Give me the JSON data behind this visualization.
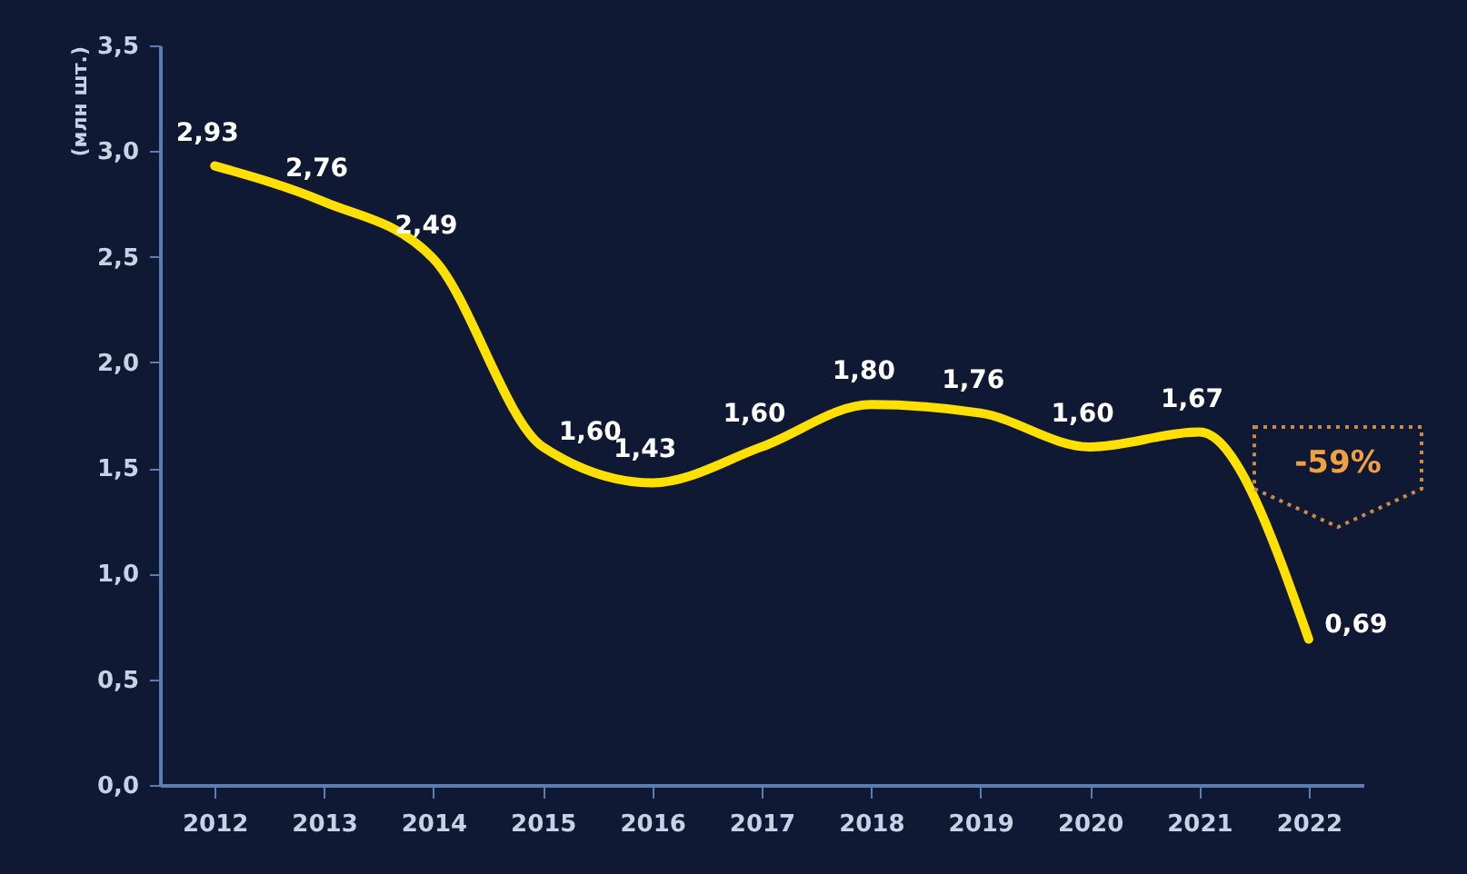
{
  "chart_data": {
    "type": "line",
    "ylabel": "(млн шт.)",
    "categories": [
      "2012",
      "2013",
      "2014",
      "2015",
      "2016",
      "2017",
      "2018",
      "2019",
      "2020",
      "2021",
      "2022"
    ],
    "series": [
      {
        "color": "#ffe000",
        "values": [
          2.93,
          2.76,
          2.49,
          1.6,
          1.43,
          1.6,
          1.8,
          1.76,
          1.6,
          1.67,
          0.69
        ],
        "value_labels": [
          "2,93",
          "2,76",
          "2,49",
          "1,60",
          "1,43",
          "1,60",
          "1,80",
          "1,76",
          "1,60",
          "1,67",
          "0,69"
        ]
      }
    ],
    "ylim": [
      0,
      3.5
    ],
    "yticks": [
      {
        "value": 0,
        "label": "0,0"
      },
      {
        "value": 0.5,
        "label": "0,5"
      },
      {
        "value": 1,
        "label": "1,0"
      },
      {
        "value": 1.5,
        "label": "1,5"
      },
      {
        "value": 2,
        "label": "2,0"
      },
      {
        "value": 2.5,
        "label": "2,5"
      },
      {
        "value": 3,
        "label": "3,0"
      },
      {
        "value": 3.5,
        "label": "3,5"
      }
    ],
    "annotations": [
      "-59%"
    ]
  }
}
